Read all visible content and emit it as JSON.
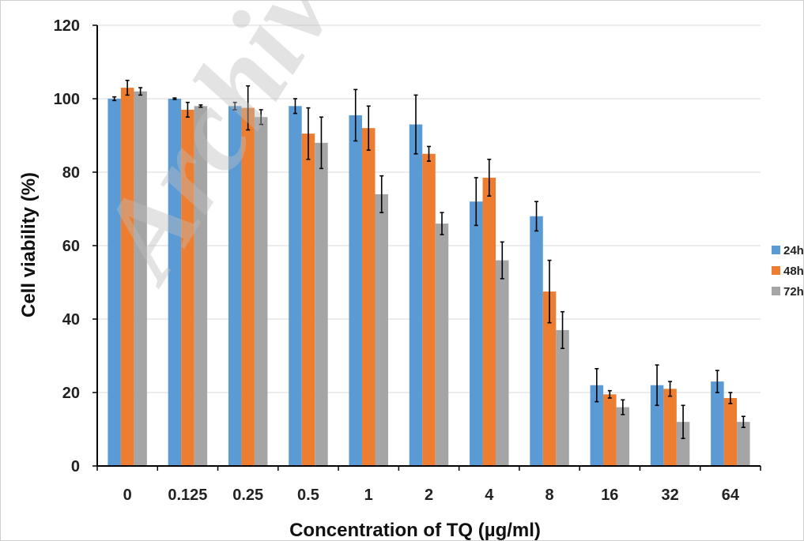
{
  "watermark_text": "Archive",
  "chart_data": {
    "type": "bar",
    "title": "",
    "xlabel": "Concentration of TQ (µg/ml)",
    "ylabel": "Cell viability (%)",
    "ylim": [
      0,
      120
    ],
    "yticks": [
      0,
      20,
      40,
      60,
      80,
      100,
      120
    ],
    "grid": true,
    "legend_position": "right",
    "categories": [
      "0",
      "0.125",
      "0.25",
      "0.5",
      "1",
      "2",
      "4",
      "8",
      "16",
      "32",
      "64"
    ],
    "series": [
      {
        "name": "24h",
        "color": "#5b9bd5",
        "values": [
          100,
          100,
          98,
          98,
          95.5,
          93,
          72,
          68,
          22,
          22,
          23
        ],
        "errors": [
          0.5,
          0.2,
          1,
          2,
          7,
          8,
          6.5,
          4,
          4.5,
          5.5,
          3
        ]
      },
      {
        "name": "48h",
        "color": "#ed7d31",
        "values": [
          103,
          97,
          97.5,
          90.5,
          92,
          85,
          78.5,
          47.5,
          19.5,
          21,
          18.5
        ],
        "errors": [
          2,
          2,
          6,
          7,
          6,
          2,
          5,
          8.5,
          1,
          2,
          1.5
        ]
      },
      {
        "name": "72h",
        "color": "#a5a5a5",
        "values": [
          102,
          98,
          95,
          88,
          74,
          66,
          56,
          37,
          16,
          12,
          12
        ],
        "errors": [
          1,
          0.3,
          2,
          7,
          5,
          3,
          5,
          5,
          2,
          4.5,
          1.5
        ]
      }
    ]
  }
}
